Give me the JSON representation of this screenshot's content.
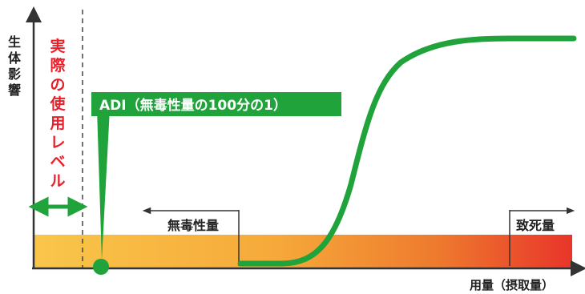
{
  "axes": {
    "y_label": [
      "生",
      "体",
      "影",
      "響"
    ],
    "x_label": "用量（摂取量）"
  },
  "zones": {
    "actual_use_label": [
      "実",
      "際",
      "の",
      "使",
      "用",
      "レ",
      "ベ",
      "ル"
    ],
    "noael_label": "無毒性量",
    "lethal_label": "致死量"
  },
  "adi": {
    "label": "ADI（無毒性量の100分の1）"
  },
  "colors": {
    "curve": "#1fa33a",
    "adi_box": "#1fa33a",
    "actual_use_text": "#e8202a",
    "band_start": "#f9c64a",
    "band_end": "#e8352a",
    "axis": "#333333"
  }
}
